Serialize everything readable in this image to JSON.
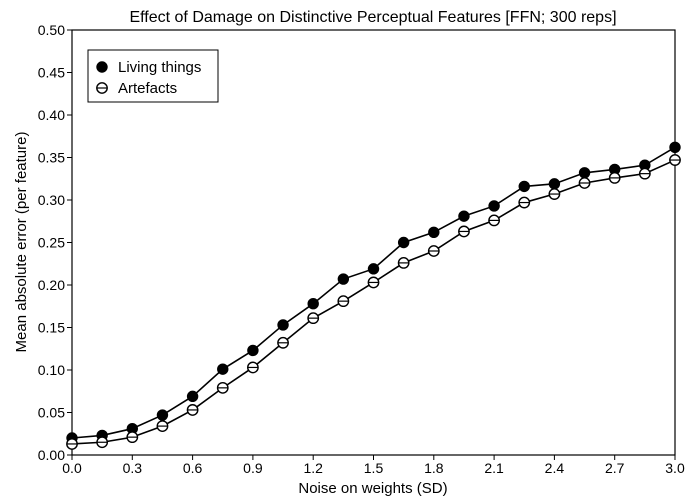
{
  "chart_data": {
    "type": "line",
    "title": "Effect of Damage on Distinctive Perceptual Features [FFN; 300 reps]",
    "xlabel": "Noise on weights (SD)",
    "ylabel": "Mean absolute error (per feature)",
    "xlim": [
      0.0,
      3.0
    ],
    "ylim": [
      0.0,
      0.5
    ],
    "xticks": [
      0.0,
      0.3,
      0.6,
      0.9,
      1.2,
      1.5,
      1.8,
      2.1,
      2.4,
      2.7,
      3.0
    ],
    "xtick_labels": [
      "0.0",
      "0.3",
      "0.6",
      "0.9",
      "1.2",
      "1.5",
      "1.8",
      "2.1",
      "2.4",
      "2.7",
      "3.0"
    ],
    "yticks": [
      0.0,
      0.05,
      0.1,
      0.15,
      0.2,
      0.25,
      0.3,
      0.35,
      0.4,
      0.45,
      0.5
    ],
    "ytick_labels": [
      "0.00",
      "0.05",
      "0.10",
      "0.15",
      "0.20",
      "0.25",
      "0.30",
      "0.35",
      "0.40",
      "0.45",
      "0.50"
    ],
    "legend_position": "top-left",
    "grid": false,
    "x": [
      0.0,
      0.15,
      0.3,
      0.45,
      0.6,
      0.75,
      0.9,
      1.05,
      1.2,
      1.35,
      1.5,
      1.65,
      1.8,
      1.95,
      2.1,
      2.25,
      2.4,
      2.55,
      2.7,
      2.85,
      3.0
    ],
    "series": [
      {
        "name": "Living things",
        "marker": "filled-circle",
        "values": [
          0.02,
          0.023,
          0.031,
          0.047,
          0.069,
          0.101,
          0.123,
          0.153,
          0.178,
          0.207,
          0.219,
          0.25,
          0.262,
          0.281,
          0.293,
          0.316,
          0.319,
          0.332,
          0.336,
          0.341,
          0.362
        ]
      },
      {
        "name": "Artefacts",
        "marker": "open-circle-errorbar",
        "values": [
          0.013,
          0.015,
          0.021,
          0.034,
          0.053,
          0.079,
          0.103,
          0.132,
          0.161,
          0.181,
          0.203,
          0.226,
          0.24,
          0.263,
          0.276,
          0.297,
          0.307,
          0.32,
          0.326,
          0.331,
          0.347
        ]
      }
    ]
  }
}
